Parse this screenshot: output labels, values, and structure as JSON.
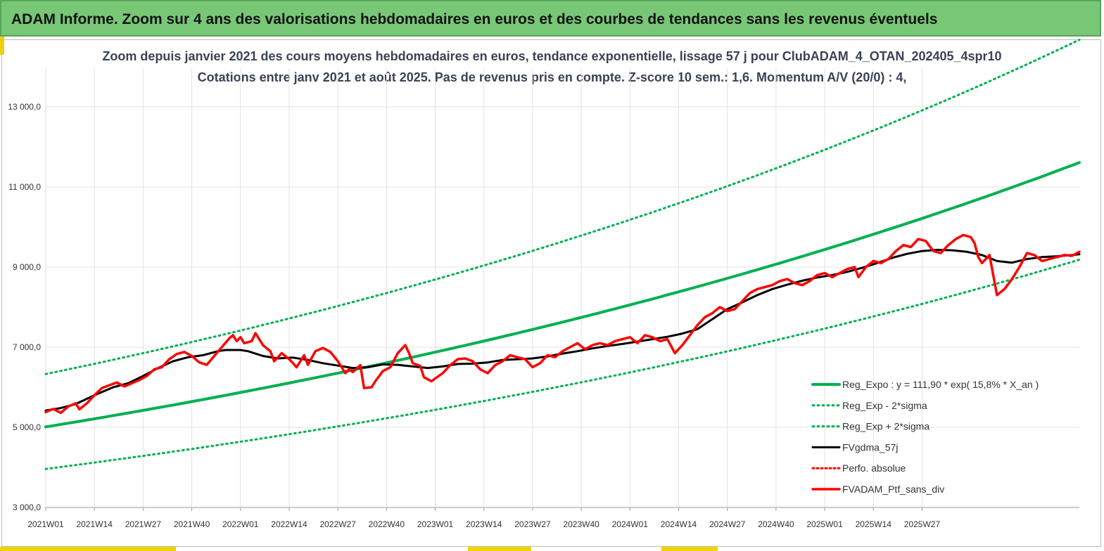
{
  "banner": {
    "title": "ADAM Informe. Zoom sur 4 ans des valorisations hebdomadaires en euros et des courbes de tendances sans les revenus éventuels"
  },
  "chart_data": {
    "type": "line",
    "title": "Zoom depuis janvier 2021 des cours moyens hebdomadaires  en euros, tendance exponentielle, lissage 57 j pour ClubADAM_4_OTAN_202405_4spr10",
    "subtitle": "Cotations  entre janv 2021 et août 2025. Pas de revenus pris en compte. Z-score 10 sem.: 1,6. Momentum  A/V (20/0) : 4,",
    "xlabel": "",
    "ylabel": "",
    "x_ticks": [
      "2021W01",
      "2021W14",
      "2021W27",
      "2021W40",
      "2022W01",
      "2022W14",
      "2022W27",
      "2022W40",
      "2023W01",
      "2023W14",
      "2023W27",
      "2023W40",
      "2024W01",
      "2024W14",
      "2024W27",
      "2024W40",
      "2025W01",
      "2025W14",
      "2025W27"
    ],
    "y_ticks": [
      "3 000,0",
      "5 000,0",
      "7 000,0",
      "9 000,0",
      "11 000,0",
      "13 000,0"
    ],
    "x_range_weeks": [
      0,
      238
    ],
    "ylim": [
      3000,
      13500
    ],
    "grid": true,
    "legend_position": "bottom-right",
    "colors": {
      "trend": "#00b050",
      "smooth": "#000000",
      "absolute": "#ff0000",
      "portfolio": "#ff0000"
    },
    "series": [
      {
        "name": "Reg_Expo : y = 111,90 * exp( 15,8% *  X_an )",
        "style": "solid-green",
        "function": "exp",
        "points": [
          [
            0,
            5010
          ],
          [
            238,
            10340
          ]
        ]
      },
      {
        "name": "Reg_Exp - 2*sigma",
        "style": "dotted-green",
        "function": "exp",
        "points": [
          [
            0,
            3960
          ],
          [
            238,
            8180
          ]
        ]
      },
      {
        "name": "Reg_Exp + 2*sigma",
        "style": "dotted-green",
        "function": "exp",
        "points": [
          [
            0,
            6330
          ],
          [
            238,
            13070
          ]
        ]
      },
      {
        "name": "FVgdma_57j",
        "style": "solid-black",
        "points": [
          [
            0,
            5420
          ],
          [
            4,
            5480
          ],
          [
            8,
            5580
          ],
          [
            13,
            5800
          ],
          [
            18,
            6000
          ],
          [
            22,
            6100
          ],
          [
            26,
            6280
          ],
          [
            30,
            6480
          ],
          [
            34,
            6650
          ],
          [
            38,
            6750
          ],
          [
            42,
            6800
          ],
          [
            46,
            6900
          ],
          [
            48,
            6930
          ],
          [
            52,
            6930
          ],
          [
            54,
            6900
          ],
          [
            58,
            6780
          ],
          [
            62,
            6720
          ],
          [
            66,
            6740
          ],
          [
            70,
            6680
          ],
          [
            74,
            6600
          ],
          [
            78,
            6540
          ],
          [
            82,
            6480
          ],
          [
            86,
            6500
          ],
          [
            90,
            6570
          ],
          [
            94,
            6560
          ],
          [
            98,
            6520
          ],
          [
            102,
            6480
          ],
          [
            106,
            6520
          ],
          [
            110,
            6580
          ],
          [
            114,
            6590
          ],
          [
            118,
            6620
          ],
          [
            122,
            6680
          ],
          [
            126,
            6700
          ],
          [
            130,
            6720
          ],
          [
            134,
            6770
          ],
          [
            138,
            6840
          ],
          [
            142,
            6900
          ],
          [
            146,
            6970
          ],
          [
            150,
            7030
          ],
          [
            154,
            7080
          ],
          [
            158,
            7140
          ],
          [
            162,
            7200
          ],
          [
            166,
            7260
          ],
          [
            170,
            7340
          ],
          [
            174,
            7450
          ],
          [
            178,
            7700
          ],
          [
            182,
            7950
          ],
          [
            186,
            8120
          ],
          [
            190,
            8300
          ],
          [
            194,
            8450
          ],
          [
            198,
            8560
          ],
          [
            202,
            8660
          ],
          [
            206,
            8740
          ],
          [
            210,
            8800
          ],
          [
            214,
            8880
          ],
          [
            218,
            8980
          ],
          [
            222,
            9100
          ],
          [
            226,
            9230
          ],
          [
            230,
            9330
          ],
          [
            234,
            9400
          ],
          [
            238,
            9430
          ],
          [
            242,
            9420
          ],
          [
            246,
            9380
          ],
          [
            250,
            9300
          ],
          [
            254,
            9150
          ],
          [
            258,
            9110
          ],
          [
            262,
            9200
          ],
          [
            266,
            9250
          ],
          [
            270,
            9270
          ],
          [
            274,
            9300
          ],
          [
            276,
            9320
          ]
        ]
      },
      {
        "name": "Perfo. absolue",
        "style": "dotted-red",
        "points": []
      },
      {
        "name": "FVADAM_Ptf_sans_div",
        "style": "solid-red",
        "points": [
          [
            0,
            5380
          ],
          [
            2,
            5460
          ],
          [
            4,
            5360
          ],
          [
            6,
            5520
          ],
          [
            8,
            5600
          ],
          [
            9,
            5450
          ],
          [
            11,
            5600
          ],
          [
            13,
            5800
          ],
          [
            15,
            5980
          ],
          [
            17,
            6050
          ],
          [
            19,
            6120
          ],
          [
            21,
            6020
          ],
          [
            23,
            6100
          ],
          [
            25,
            6180
          ],
          [
            27,
            6280
          ],
          [
            29,
            6450
          ],
          [
            31,
            6500
          ],
          [
            33,
            6700
          ],
          [
            35,
            6830
          ],
          [
            37,
            6880
          ],
          [
            39,
            6780
          ],
          [
            41,
            6620
          ],
          [
            43,
            6560
          ],
          [
            45,
            6780
          ],
          [
            47,
            7000
          ],
          [
            49,
            7220
          ],
          [
            50,
            7300
          ],
          [
            51,
            7150
          ],
          [
            52,
            7250
          ],
          [
            53,
            7100
          ],
          [
            55,
            7150
          ],
          [
            56,
            7350
          ],
          [
            58,
            7050
          ],
          [
            60,
            6900
          ],
          [
            61,
            6650
          ],
          [
            63,
            6850
          ],
          [
            65,
            6700
          ],
          [
            67,
            6500
          ],
          [
            69,
            6800
          ],
          [
            70,
            6560
          ],
          [
            72,
            6900
          ],
          [
            74,
            6980
          ],
          [
            76,
            6880
          ],
          [
            78,
            6650
          ],
          [
            80,
            6350
          ],
          [
            81,
            6450
          ],
          [
            82,
            6380
          ],
          [
            84,
            6550
          ],
          [
            85,
            5980
          ],
          [
            87,
            6000
          ],
          [
            88,
            6150
          ],
          [
            90,
            6400
          ],
          [
            92,
            6500
          ],
          [
            94,
            6850
          ],
          [
            96,
            7050
          ],
          [
            97,
            6850
          ],
          [
            98,
            6600
          ],
          [
            100,
            6530
          ],
          [
            101,
            6250
          ],
          [
            103,
            6150
          ],
          [
            104,
            6220
          ],
          [
            106,
            6350
          ],
          [
            108,
            6550
          ],
          [
            110,
            6700
          ],
          [
            112,
            6720
          ],
          [
            114,
            6650
          ],
          [
            116,
            6450
          ],
          [
            118,
            6350
          ],
          [
            120,
            6550
          ],
          [
            122,
            6650
          ],
          [
            124,
            6800
          ],
          [
            126,
            6750
          ],
          [
            128,
            6700
          ],
          [
            130,
            6500
          ],
          [
            132,
            6600
          ],
          [
            134,
            6800
          ],
          [
            136,
            6750
          ],
          [
            138,
            6900
          ],
          [
            140,
            7000
          ],
          [
            142,
            7100
          ],
          [
            144,
            6950
          ],
          [
            146,
            7050
          ],
          [
            148,
            7100
          ],
          [
            150,
            7050
          ],
          [
            152,
            7150
          ],
          [
            154,
            7200
          ],
          [
            156,
            7250
          ],
          [
            158,
            7100
          ],
          [
            160,
            7300
          ],
          [
            162,
            7250
          ],
          [
            164,
            7150
          ],
          [
            166,
            7200
          ],
          [
            168,
            6850
          ],
          [
            170,
            7050
          ],
          [
            172,
            7300
          ],
          [
            174,
            7550
          ],
          [
            176,
            7750
          ],
          [
            178,
            7850
          ],
          [
            180,
            8000
          ],
          [
            182,
            7900
          ],
          [
            184,
            7950
          ],
          [
            186,
            8150
          ],
          [
            188,
            8350
          ],
          [
            190,
            8450
          ],
          [
            192,
            8500
          ],
          [
            194,
            8550
          ],
          [
            196,
            8650
          ],
          [
            198,
            8700
          ],
          [
            200,
            8600
          ],
          [
            202,
            8550
          ],
          [
            204,
            8650
          ],
          [
            206,
            8800
          ],
          [
            208,
            8850
          ],
          [
            210,
            8750
          ],
          [
            212,
            8850
          ],
          [
            214,
            8950
          ],
          [
            216,
            9000
          ],
          [
            217,
            8750
          ],
          [
            219,
            9000
          ],
          [
            221,
            9150
          ],
          [
            223,
            9100
          ],
          [
            225,
            9200
          ],
          [
            227,
            9400
          ],
          [
            229,
            9550
          ],
          [
            231,
            9500
          ],
          [
            233,
            9700
          ],
          [
            235,
            9650
          ],
          [
            237,
            9400
          ],
          [
            239,
            9350
          ],
          [
            241,
            9550
          ],
          [
            243,
            9700
          ],
          [
            245,
            9800
          ],
          [
            247,
            9750
          ],
          [
            248,
            9600
          ],
          [
            249,
            9250
          ],
          [
            250,
            9100
          ],
          [
            252,
            9300
          ],
          [
            253,
            8800
          ],
          [
            254,
            8300
          ],
          [
            256,
            8450
          ],
          [
            258,
            8700
          ],
          [
            260,
            9000
          ],
          [
            262,
            9350
          ],
          [
            264,
            9300
          ],
          [
            266,
            9150
          ],
          [
            268,
            9200
          ],
          [
            270,
            9250
          ],
          [
            272,
            9300
          ],
          [
            274,
            9280
          ],
          [
            276,
            9380
          ]
        ]
      }
    ]
  }
}
